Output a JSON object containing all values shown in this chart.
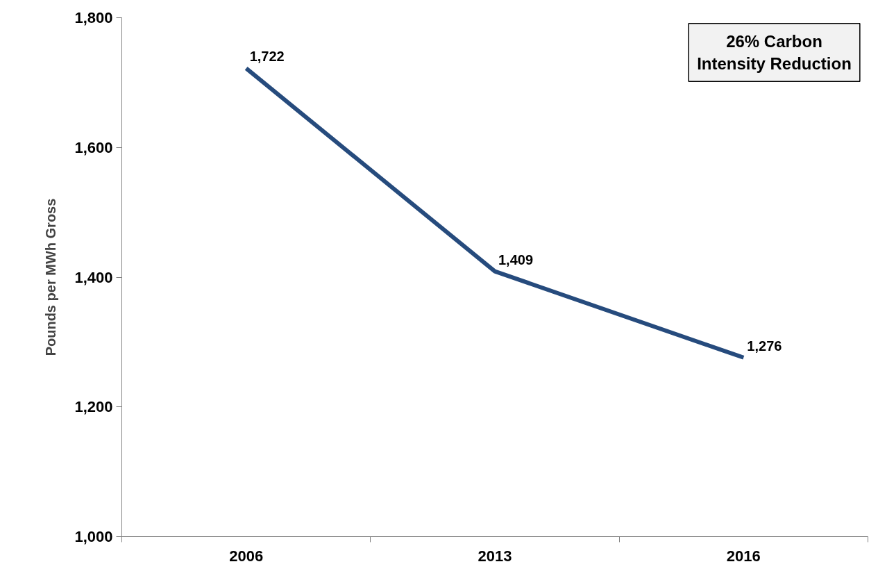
{
  "chart_data": {
    "type": "line",
    "ylabel": "Pounds per MWh Gross",
    "categories": [
      "2006",
      "2013",
      "2016"
    ],
    "series": [
      {
        "color": "#264b7d",
        "values": [
          1722,
          1409,
          1276
        ],
        "value_labels": [
          "1,722",
          "1,409",
          "1,276"
        ]
      }
    ],
    "ylim": [
      1000,
      1800
    ],
    "yticks": [
      {
        "value": 1000,
        "label": "1,000"
      },
      {
        "value": 1200,
        "label": "1,200"
      },
      {
        "value": 1400,
        "label": "1,400"
      },
      {
        "value": 1600,
        "label": "1,600"
      },
      {
        "value": 1800,
        "label": "1,800"
      }
    ],
    "grid": false,
    "marker": "none",
    "line_style": "solid",
    "annotations": [
      "26% Carbon\nIntensity Reduction"
    ]
  }
}
